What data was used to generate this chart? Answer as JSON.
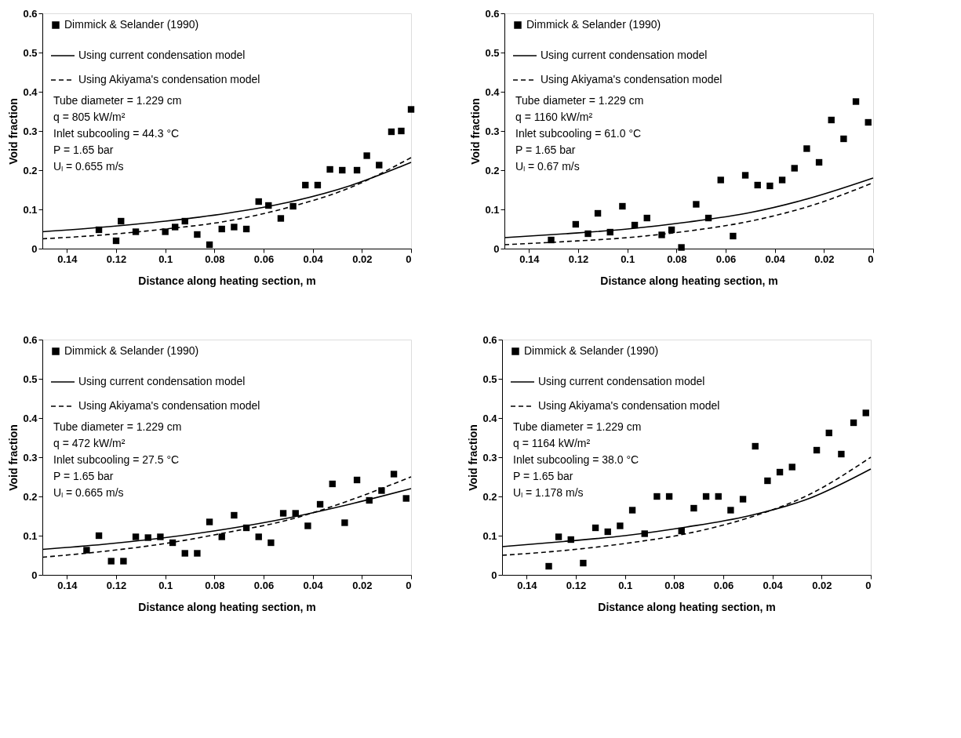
{
  "chart_data": [
    {
      "type": "line",
      "xlabel": "Distance along heating section, m",
      "ylabel": "Void fraction",
      "xlim": [
        0.15,
        0
      ],
      "xticks": [
        0.14,
        0.12,
        0.1,
        0.08,
        0.06,
        0.04,
        0.02,
        0
      ],
      "ylim": [
        0,
        0.6
      ],
      "yticks": [
        0,
        0.1,
        0.2,
        0.3,
        0.4,
        0.5,
        0.6
      ],
      "grid": false,
      "legend": "top left",
      "annotations": [
        "Tube diameter = 1.229 cm",
        "q = 805 kW/m²",
        "Inlet subcooling = 44.3 °C",
        "P = 1.65 bar",
        "Uₗ = 0.655 m/s"
      ],
      "series": [
        {
          "name": "Dimmick & Selander (1990)",
          "type": "scatter",
          "marker": "square",
          "color": "#000000",
          "x": [
            0.127,
            0.12,
            0.118,
            0.112,
            0.1,
            0.096,
            0.092,
            0.087,
            0.082,
            0.077,
            0.072,
            0.067,
            0.062,
            0.058,
            0.053,
            0.048,
            0.043,
            0.038,
            0.033,
            0.028,
            0.022,
            0.018,
            0.013,
            0.008,
            0.004,
            0.0
          ],
          "values": [
            0.048,
            0.02,
            0.07,
            0.043,
            0.043,
            0.055,
            0.07,
            0.036,
            0.01,
            0.05,
            0.055,
            0.05,
            0.12,
            0.11,
            0.077,
            0.108,
            0.162,
            0.162,
            0.202,
            0.2,
            0.2,
            0.237,
            0.213,
            0.298,
            0.3,
            0.355
          ]
        },
        {
          "name": "Using current condensation model",
          "line_style": "solid",
          "color": "#000000",
          "x": [
            0.15,
            0.125,
            0.1,
            0.075,
            0.05,
            0.025,
            0
          ],
          "values": [
            0.043,
            0.055,
            0.07,
            0.09,
            0.118,
            0.16,
            0.22
          ]
        },
        {
          "name": "Using Akiyama's condensation model",
          "line_style": "dashed",
          "color": "#000000",
          "x": [
            0.15,
            0.125,
            0.1,
            0.075,
            0.05,
            0.025,
            0
          ],
          "values": [
            0.025,
            0.035,
            0.05,
            0.07,
            0.105,
            0.155,
            0.232
          ]
        }
      ]
    },
    {
      "type": "line",
      "xlabel": "Distance along heating section, m",
      "ylabel": "Void fraction",
      "xlim": [
        0.15,
        0
      ],
      "xticks": [
        0.14,
        0.12,
        0.1,
        0.08,
        0.06,
        0.04,
        0.02,
        0
      ],
      "ylim": [
        0,
        0.6
      ],
      "yticks": [
        0,
        0.1,
        0.2,
        0.3,
        0.4,
        0.5,
        0.6
      ],
      "grid": false,
      "legend": "top left",
      "annotations": [
        "Tube diameter = 1.229 cm",
        "q = 1160 kW/m²",
        "Inlet subcooling = 61.0 °C",
        "P = 1.65 bar",
        "Uₗ = 0.67 m/s"
      ],
      "series": [
        {
          "name": "Dimmick & Selander (1990)",
          "type": "scatter",
          "marker": "square",
          "color": "#000000",
          "x": [
            0.131,
            0.121,
            0.116,
            0.112,
            0.107,
            0.102,
            0.097,
            0.092,
            0.086,
            0.082,
            0.078,
            0.072,
            0.067,
            0.062,
            0.057,
            0.052,
            0.047,
            0.042,
            0.037,
            0.032,
            0.027,
            0.022,
            0.017,
            0.012,
            0.007,
            0.002
          ],
          "values": [
            0.022,
            0.062,
            0.038,
            0.09,
            0.042,
            0.108,
            0.06,
            0.078,
            0.035,
            0.048,
            0.003,
            0.113,
            0.078,
            0.175,
            0.032,
            0.187,
            0.162,
            0.16,
            0.175,
            0.205,
            0.255,
            0.22,
            0.328,
            0.28,
            0.375,
            0.322
          ]
        },
        {
          "name": "Using current condensation model",
          "line_style": "solid",
          "color": "#000000",
          "x": [
            0.15,
            0.125,
            0.1,
            0.075,
            0.05,
            0.025,
            0
          ],
          "values": [
            0.028,
            0.038,
            0.05,
            0.068,
            0.092,
            0.13,
            0.18
          ]
        },
        {
          "name": "Using Akiyama's condensation model",
          "line_style": "dashed",
          "color": "#000000",
          "x": [
            0.15,
            0.125,
            0.1,
            0.075,
            0.05,
            0.025,
            0
          ],
          "values": [
            0.01,
            0.018,
            0.028,
            0.045,
            0.07,
            0.11,
            0.168
          ]
        }
      ]
    },
    {
      "type": "line",
      "xlabel": "Distance along heating section, m",
      "ylabel": "Void fraction",
      "xlim": [
        0.15,
        0
      ],
      "xticks": [
        0.14,
        0.12,
        0.1,
        0.08,
        0.06,
        0.04,
        0.02,
        0
      ],
      "ylim": [
        0,
        0.6
      ],
      "yticks": [
        0,
        0.1,
        0.2,
        0.3,
        0.4,
        0.5,
        0.6
      ],
      "grid": false,
      "legend": "top left",
      "annotations": [
        "Tube diameter = 1.229 cm",
        "q = 472 kW/m²",
        "Inlet subcooling = 27.5 °C",
        "P = 1.65 bar",
        "Uₗ = 0.665 m/s"
      ],
      "series": [
        {
          "name": "Dimmick & Selander (1990)",
          "type": "scatter",
          "marker": "square",
          "color": "#000000",
          "x": [
            0.132,
            0.127,
            0.122,
            0.117,
            0.112,
            0.107,
            0.102,
            0.097,
            0.092,
            0.087,
            0.082,
            0.077,
            0.072,
            0.067,
            0.062,
            0.057,
            0.052,
            0.047,
            0.042,
            0.037,
            0.032,
            0.027,
            0.022,
            0.017,
            0.012,
            0.007,
            0.002
          ],
          "values": [
            0.063,
            0.1,
            0.035,
            0.035,
            0.097,
            0.095,
            0.097,
            0.082,
            0.055,
            0.055,
            0.135,
            0.097,
            0.152,
            0.12,
            0.097,
            0.082,
            0.157,
            0.157,
            0.125,
            0.18,
            0.232,
            0.133,
            0.242,
            0.19,
            0.215,
            0.257,
            0.195
          ]
        },
        {
          "name": "Using current condensation model",
          "line_style": "solid",
          "color": "#000000",
          "x": [
            0.15,
            0.125,
            0.1,
            0.075,
            0.05,
            0.025,
            0
          ],
          "values": [
            0.065,
            0.078,
            0.095,
            0.117,
            0.145,
            0.18,
            0.22
          ]
        },
        {
          "name": "Using Akiyama's condensation model",
          "line_style": "dashed",
          "color": "#000000",
          "x": [
            0.15,
            0.125,
            0.1,
            0.075,
            0.05,
            0.025,
            0
          ],
          "values": [
            0.045,
            0.06,
            0.08,
            0.108,
            0.14,
            0.19,
            0.25
          ]
        }
      ]
    },
    {
      "type": "line",
      "xlabel": "Distance along heating section, m",
      "ylabel": "Void fraction",
      "xlim": [
        0.15,
        0
      ],
      "xticks": [
        0.14,
        0.12,
        0.1,
        0.08,
        0.06,
        0.04,
        0.02,
        0
      ],
      "ylim": [
        0,
        0.6
      ],
      "yticks": [
        0,
        0.1,
        0.2,
        0.3,
        0.4,
        0.5,
        0.6
      ],
      "grid": false,
      "legend": "top left",
      "annotations": [
        "Tube diameter = 1.229 cm",
        "q = 1164 kW/m²",
        "Inlet subcooling = 38.0 °C",
        "P = 1.65 bar",
        "Uₗ = 1.178 m/s"
      ],
      "series": [
        {
          "name": "Dimmick & Selander (1990)",
          "type": "scatter",
          "marker": "square",
          "color": "#000000",
          "x": [
            0.131,
            0.127,
            0.122,
            0.117,
            0.112,
            0.107,
            0.102,
            0.097,
            0.092,
            0.087,
            0.082,
            0.077,
            0.072,
            0.067,
            0.062,
            0.057,
            0.052,
            0.047,
            0.042,
            0.037,
            0.032,
            0.022,
            0.017,
            0.012,
            0.007,
            0.002
          ],
          "values": [
            0.022,
            0.097,
            0.09,
            0.03,
            0.12,
            0.11,
            0.125,
            0.165,
            0.105,
            0.2,
            0.2,
            0.112,
            0.17,
            0.2,
            0.2,
            0.165,
            0.193,
            0.328,
            0.24,
            0.262,
            0.275,
            0.318,
            0.362,
            0.308,
            0.388,
            0.413
          ]
        },
        {
          "name": "Using current condensation model",
          "line_style": "solid",
          "color": "#000000",
          "x": [
            0.15,
            0.125,
            0.1,
            0.075,
            0.05,
            0.025,
            0
          ],
          "values": [
            0.072,
            0.085,
            0.1,
            0.122,
            0.15,
            0.195,
            0.27
          ]
        },
        {
          "name": "Using Akiyama's condensation model",
          "line_style": "dashed",
          "color": "#000000",
          "x": [
            0.15,
            0.125,
            0.1,
            0.075,
            0.05,
            0.025,
            0
          ],
          "values": [
            0.05,
            0.062,
            0.08,
            0.105,
            0.145,
            0.205,
            0.3
          ]
        }
      ]
    }
  ]
}
